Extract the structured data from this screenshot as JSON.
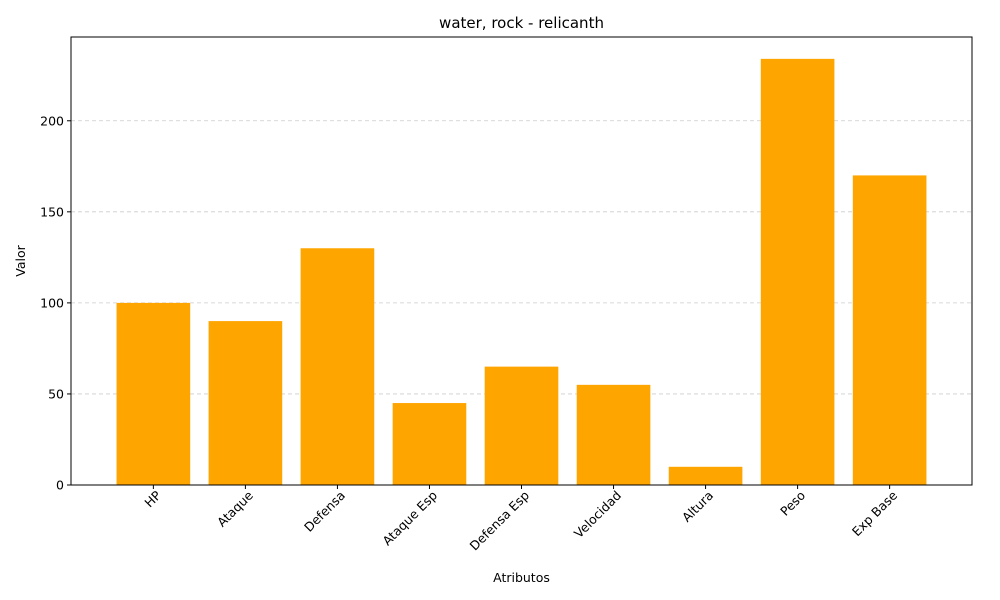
{
  "chart_data": {
    "type": "bar",
    "title": "water, rock - relicanth",
    "xlabel": "Atributos",
    "ylabel": "Valor",
    "categories": [
      "HP",
      "Ataque",
      "Defensa",
      "Ataque Esp",
      "Defensa Esp",
      "Velocidad",
      "Altura",
      "Peso",
      "Exp Base"
    ],
    "values": [
      100,
      90,
      130,
      45,
      65,
      55,
      10,
      234,
      170
    ],
    "ylim": [
      0,
      246
    ],
    "yticks": [
      0,
      50,
      100,
      150,
      200
    ],
    "grid": "y-dashed",
    "bar_color": "#ffa500",
    "x_tick_rotation": 45
  }
}
